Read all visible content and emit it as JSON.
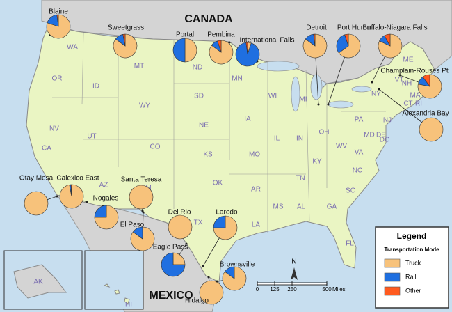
{
  "labels": {
    "canada": "CANADA",
    "mexico": "MEXICO"
  },
  "states": [
    "WA",
    "OR",
    "ID",
    "MT",
    "WY",
    "ND",
    "SD",
    "NE",
    "KS",
    "OK",
    "TX",
    "MN",
    "IA",
    "MO",
    "AR",
    "LA",
    "WI",
    "IL",
    "MI",
    "IN",
    "OH",
    "KY",
    "TN",
    "MS",
    "AL",
    "GA",
    "FL",
    "SC",
    "NC",
    "VA",
    "WV",
    "PA",
    "NY",
    "ME",
    "VT",
    "NH",
    "MA",
    "CT",
    "RI",
    "NJ",
    "DE",
    "MD",
    "DC",
    "NV",
    "CA",
    "UT",
    "AZ",
    "NM",
    "CO"
  ],
  "insets": [
    "AK",
    "HI"
  ],
  "crossings": [
    {
      "name": "Blaine",
      "values": [
        80,
        18,
        2
      ]
    },
    {
      "name": "Sweetgrass",
      "values": [
        85,
        12,
        3
      ]
    },
    {
      "name": "Portal",
      "values": [
        50,
        50,
        0
      ]
    },
    {
      "name": "Pembina",
      "values": [
        85,
        10,
        5
      ]
    },
    {
      "name": "International Falls",
      "values": [
        5,
        93,
        2
      ]
    },
    {
      "name": "Detroit",
      "values": [
        85,
        13,
        2
      ]
    },
    {
      "name": "Port Huron",
      "values": [
        65,
        30,
        5
      ]
    },
    {
      "name": "Buffalo-Niagara Falls",
      "values": [
        82,
        10,
        8
      ]
    },
    {
      "name": "Champlain-Rouses Pt",
      "values": [
        78,
        12,
        10
      ]
    },
    {
      "name": "Alexandria Bay",
      "values": [
        100,
        0,
        0
      ]
    },
    {
      "name": "Otay Mesa",
      "values": [
        100,
        0,
        0
      ]
    },
    {
      "name": "Calexico East",
      "values": [
        97,
        2,
        1
      ]
    },
    {
      "name": "Nogales",
      "values": [
        75,
        25,
        0
      ]
    },
    {
      "name": "Santa Teresa",
      "values": [
        100,
        0,
        0
      ]
    },
    {
      "name": "El Paso",
      "values": [
        85,
        15,
        0
      ]
    },
    {
      "name": "Del Rio",
      "values": [
        100,
        0,
        0
      ]
    },
    {
      "name": "Eagle Pass",
      "values": [
        25,
        75,
        0
      ]
    },
    {
      "name": "Laredo",
      "values": [
        75,
        25,
        0
      ]
    },
    {
      "name": "Hidalgo",
      "values": [
        100,
        0,
        0
      ]
    },
    {
      "name": "Brownsville",
      "values": [
        85,
        15,
        0
      ]
    }
  ],
  "legend": {
    "title": "Legend",
    "subtitle": "Transportation Mode",
    "items": [
      {
        "name": "Truck",
        "color": "#f7c27b"
      },
      {
        "name": "Rail",
        "color": "#1f6fe0"
      },
      {
        "name": "Other",
        "color": "#ff5a1f"
      }
    ]
  },
  "scale": {
    "ticks": [
      0,
      125,
      250,
      500
    ],
    "unit": "Miles"
  },
  "north": "N"
}
